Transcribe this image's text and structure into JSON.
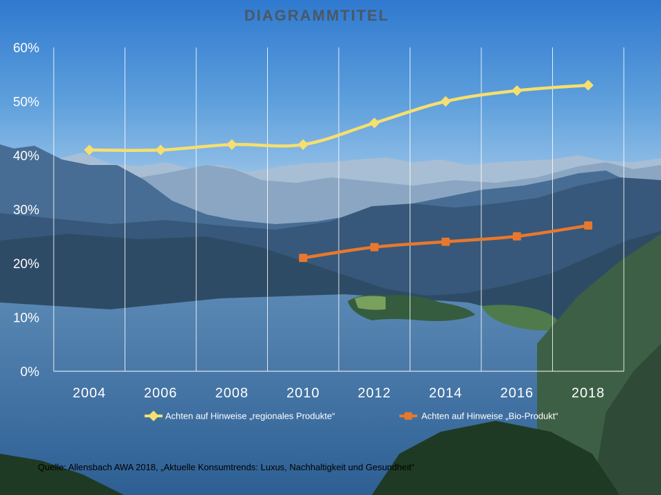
{
  "colors": {
    "series_regional": "#f5df6e",
    "series_bio": "#e8782d",
    "title": "#4a5866",
    "gridline": "#ffffff"
  },
  "chart_data": {
    "type": "line",
    "title": "DIAGRAMMTITEL",
    "categories": [
      "2004",
      "2006",
      "2008",
      "2010",
      "2012",
      "2014",
      "2016",
      "2018"
    ],
    "ylim": [
      0,
      60
    ],
    "yticks": [
      "0%",
      "10%",
      "20%",
      "30%",
      "40%",
      "50%",
      "60%"
    ],
    "grid": "vertical",
    "legend_position": "bottom",
    "series": [
      {
        "name": "Achten auf Hinweise „regionales Produkte“",
        "marker": "diamond",
        "values": [
          41,
          41,
          42,
          42,
          46,
          50,
          52,
          53
        ]
      },
      {
        "name": "Achten auf Hinweise „Bio-Produkt“",
        "marker": "square",
        "values": [
          null,
          null,
          null,
          21,
          23,
          24,
          25,
          27
        ]
      }
    ]
  },
  "source_note": "Quelle: Allensbach AWA 2018, „Aktuelle Konsumtrends:  Luxus, Nachhaltigkeit und Gesundheit“"
}
